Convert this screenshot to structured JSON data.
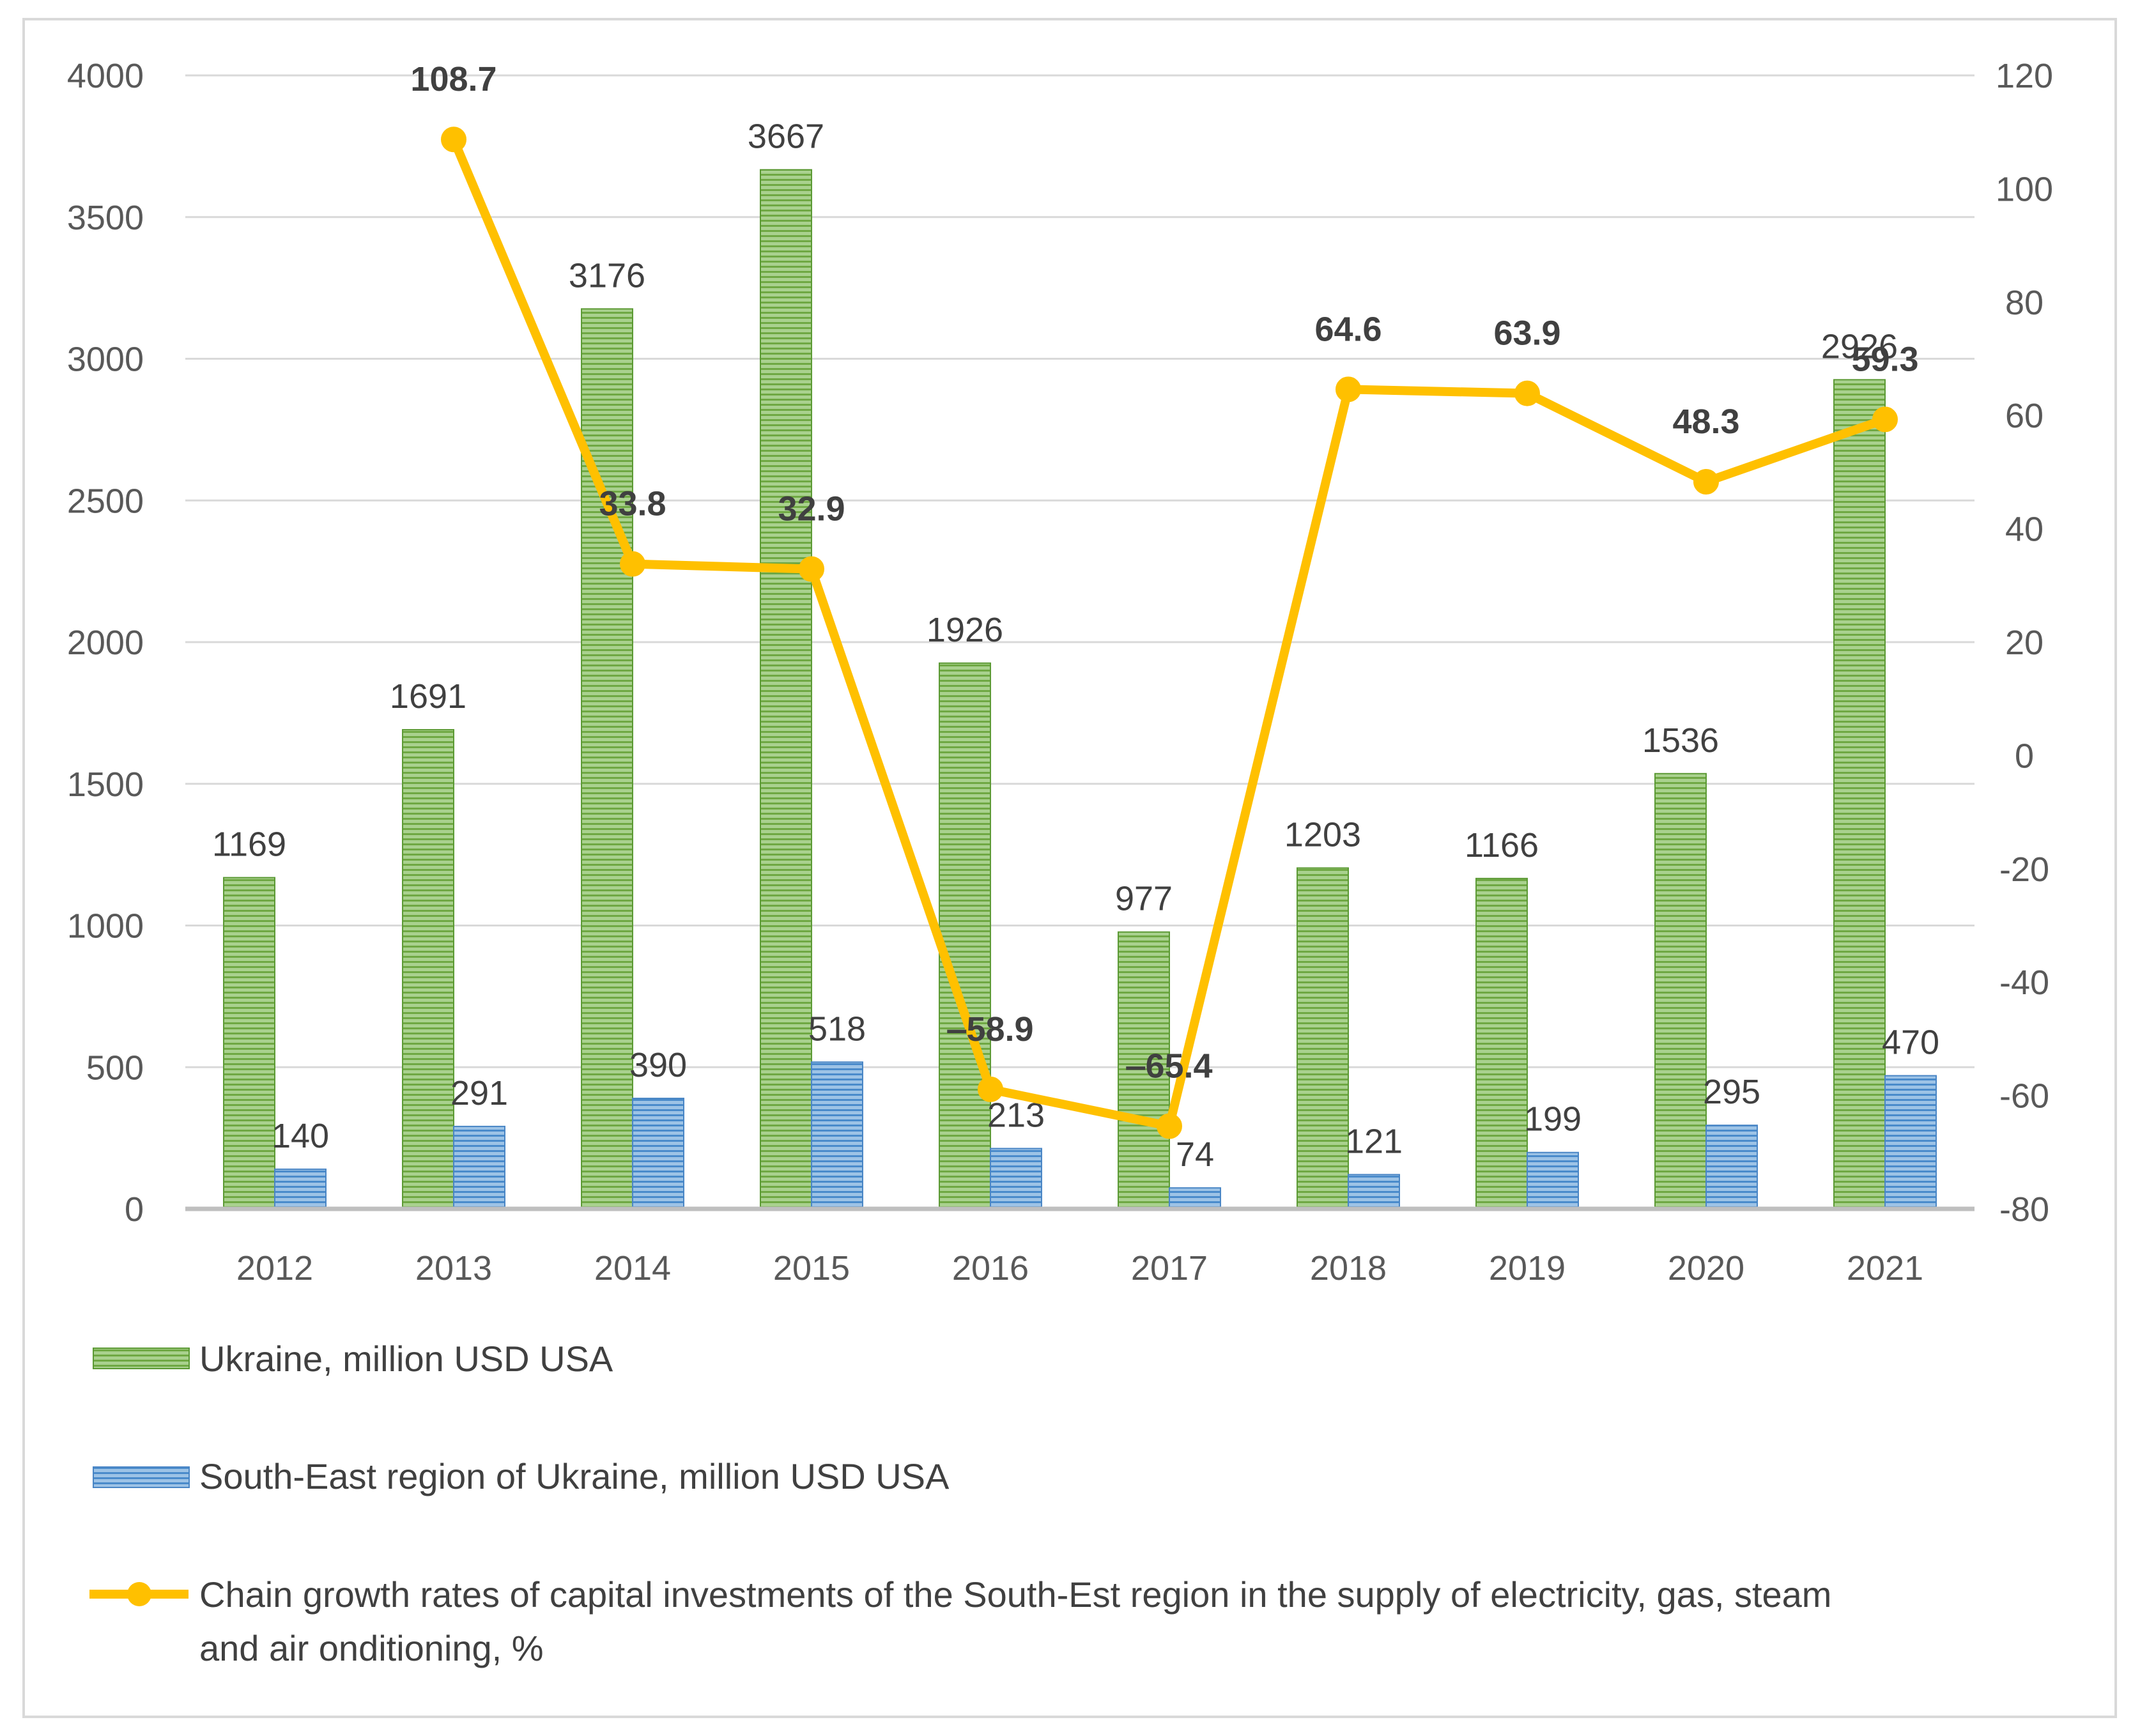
{
  "chart_data": {
    "type": "bar+line",
    "categories": [
      "2012",
      "2013",
      "2014",
      "2015",
      "2016",
      "2017",
      "2018",
      "2019",
      "2020",
      "2021"
    ],
    "series": [
      {
        "name": "Ukraine, million USD USA",
        "kind": "bar",
        "axis": "left",
        "color": "#70AD47",
        "values": [
          1169,
          1691,
          3176,
          3667,
          1926,
          977,
          1203,
          1166,
          1536,
          2926
        ]
      },
      {
        "name": "South-East region of Ukraine, million USD USA",
        "kind": "bar",
        "axis": "left",
        "color": "#5B9BD5",
        "values": [
          140,
          291,
          390,
          518,
          213,
          74,
          121,
          199,
          295,
          470
        ]
      },
      {
        "name": "Chain growth rates of capital investments of the South-Est region in the supply of electricity, gas, steam and air onditioning, %",
        "kind": "line",
        "axis": "right",
        "color": "#FFC000",
        "values": [
          null,
          108.7,
          33.8,
          32.9,
          -58.9,
          -65.4,
          64.6,
          63.9,
          48.3,
          59.3
        ],
        "labels": [
          "",
          "108.7",
          "33.8",
          "32.9",
          "‒58.9",
          "‒65.4",
          "64.6",
          "63.9",
          "48.3",
          "59.3"
        ]
      }
    ],
    "left_axis": {
      "min": 0,
      "max": 4000,
      "step": 500,
      "ticks": [
        "0",
        "500",
        "1000",
        "1500",
        "2000",
        "2500",
        "3000",
        "3500",
        "4000"
      ]
    },
    "right_axis": {
      "min": -80,
      "max": 120,
      "step": 20,
      "ticks": [
        "-80",
        "-60",
        "-40",
        "-20",
        "0",
        "20",
        "40",
        "60",
        "80",
        "100",
        "120"
      ]
    },
    "grid": true,
    "legend_position": "bottom"
  }
}
